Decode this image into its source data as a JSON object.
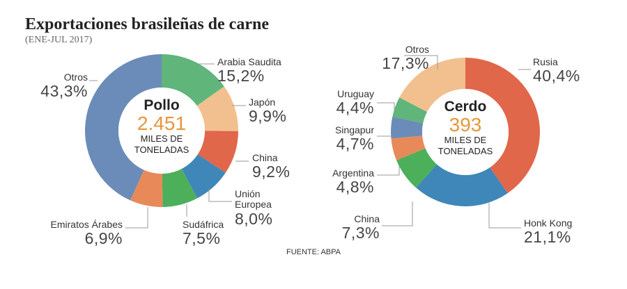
{
  "title": "Exportaciones brasileñas de carne",
  "subtitle": "(ENE-JUL 2017)",
  "source": "FUENTE: ABPA",
  "chart_data": [
    {
      "type": "pie",
      "donut": true,
      "center_title": "Pollo",
      "total": 2451,
      "total_label": "2.451",
      "unit": "MILES DE TONELADAS",
      "categories": [
        "Arabia Saudita",
        "Japón",
        "China",
        "Unión Europea",
        "Sudáfrica",
        "Emiratos Árabes",
        "Otros"
      ],
      "values": [
        15.2,
        9.9,
        9.2,
        8.0,
        7.5,
        6.9,
        43.3
      ],
      "value_labels": [
        "15,2%",
        "9,9%",
        "9,2%",
        "8,0%",
        "7,5%",
        "6,9%",
        "43,3%"
      ],
      "colors": [
        "#5fb57a",
        "#f2c08f",
        "#e0674a",
        "#3f87b8",
        "#4caf5a",
        "#e8895a",
        "#6b8cb8"
      ]
    },
    {
      "type": "pie",
      "donut": true,
      "center_title": "Cerdo",
      "total": 393,
      "unit": "MILES DE TONELADAS",
      "categories": [
        "Rusia",
        "Honk Kong",
        "China",
        "Argentina",
        "Singapur",
        "Uruguay",
        "Otros"
      ],
      "values": [
        40.4,
        21.1,
        7.3,
        4.8,
        4.7,
        4.4,
        17.3
      ],
      "value_labels": [
        "40,4%",
        "21,1%",
        "7,3%",
        "4,8%",
        "4,7%",
        "4,4%",
        "17,3%"
      ],
      "colors": [
        "#e0674a",
        "#3f87b8",
        "#4caf5a",
        "#e8895a",
        "#6b8cb8",
        "#5fb57a",
        "#f2c08f"
      ]
    }
  ]
}
